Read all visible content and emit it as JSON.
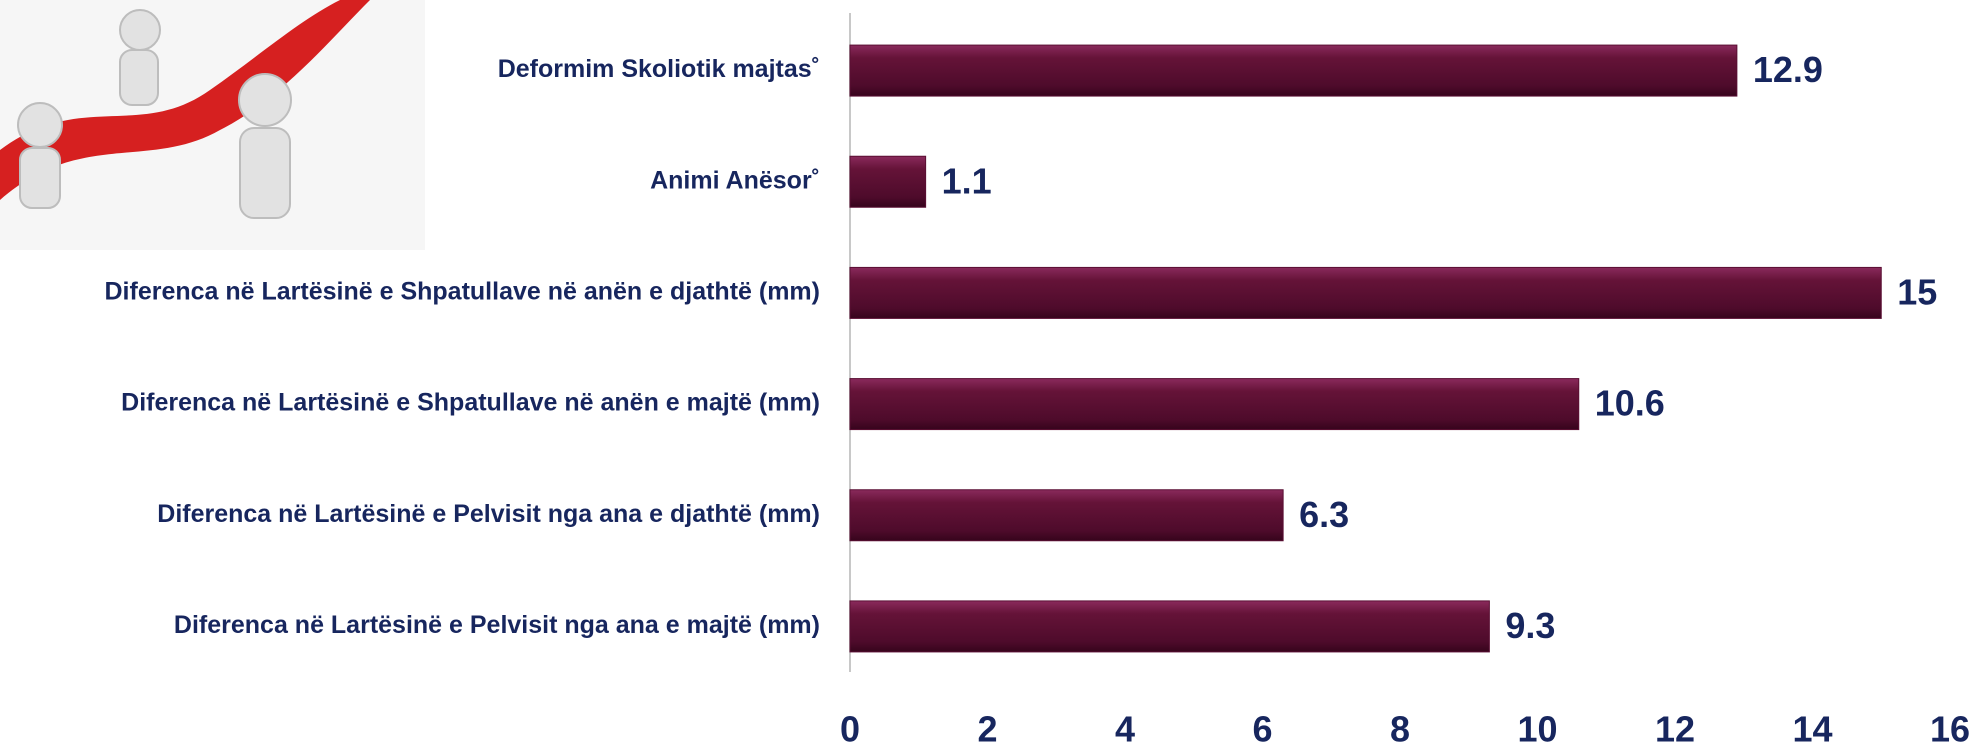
{
  "chart_data": {
    "type": "bar",
    "orientation": "horizontal",
    "categories": [
      "Deformim Skoliotik majtas˚",
      "Animi Anësor˚",
      "Diferenca në Lartësinë e Shpatullave në anën e djathtë (mm)",
      "Diferenca në Lartësinë e Shpatullave në anën e majtë (mm)",
      "Diferenca në Lartësinë e Pelvisit nga ana e djathtë (mm)",
      "Diferenca në Lartësinë e Pelvisit nga ana e majtë (mm)"
    ],
    "values": [
      12.9,
      1.1,
      15,
      10.6,
      6.3,
      9.3
    ],
    "color": "#5a0f33",
    "xlim": [
      0,
      16
    ],
    "xticks": [
      0,
      2,
      4,
      6,
      8,
      10,
      12,
      14,
      16
    ],
    "grid": false
  }
}
